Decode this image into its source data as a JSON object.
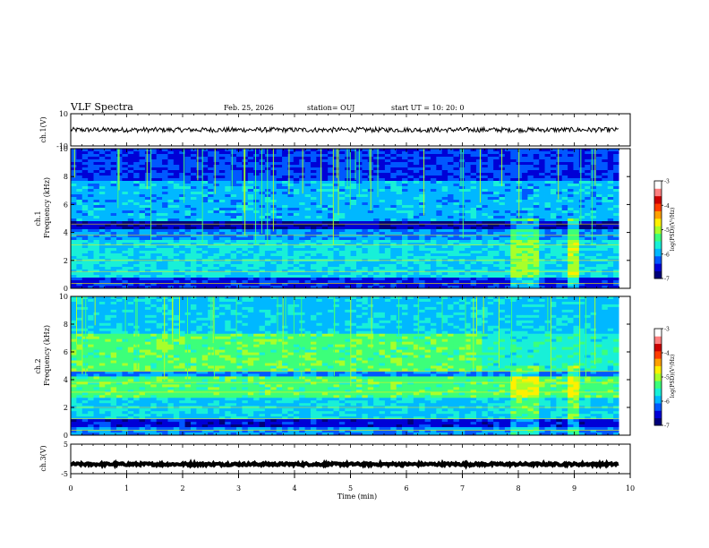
{
  "header": {
    "title": "VLF Spectra",
    "date": "Feb. 25, 2026",
    "station": "station= OUJ",
    "start": "start  UT =   10: 20: 0"
  },
  "colors": {
    "colormap": [
      "#00007a",
      "#0000d6",
      "#0058ff",
      "#00b8ff",
      "#18f0d8",
      "#3cff7a",
      "#a8ff2a",
      "#fff000",
      "#ffa000",
      "#ff3c00",
      "#cc0000",
      "#ff8080",
      "#ffffff"
    ],
    "trace": "#000000"
  },
  "chart_data": [
    {
      "type": "line",
      "panel": "ch1-waveform",
      "ylabel": "ch.1(V)",
      "ylim": [
        -10,
        10
      ],
      "yticks": [
        {
          "v": 10,
          "label": "10"
        },
        {
          "v": -10,
          "label": "-10"
        }
      ],
      "xlim": [
        0,
        10
      ],
      "center": 0,
      "amplitude_v": 1.5
    },
    {
      "type": "heatmap",
      "panel": "ch1-spectrogram",
      "ylabel_top": "ch.1",
      "ylabel": "Frequency  (kHz)",
      "ylim": [
        0,
        10
      ],
      "yticks": [
        {
          "v": 0,
          "label": "0"
        },
        {
          "v": 2,
          "label": "2"
        },
        {
          "v": 4,
          "label": "4"
        },
        {
          "v": 6,
          "label": "6"
        },
        {
          "v": 8,
          "label": "8"
        },
        {
          "v": 10,
          "label": "10"
        }
      ],
      "xlim": [
        0,
        10
      ],
      "colorbar": {
        "label": "log(PSD)(V²/Hz)",
        "range": [
          -7,
          -3
        ],
        "ticks": [
          {
            "v": -3,
            "label": "-3"
          },
          {
            "v": -4,
            "label": "-4"
          },
          {
            "v": -5,
            "label": "-5"
          },
          {
            "v": -6,
            "label": "-6"
          },
          {
            "v": -7,
            "label": "-7"
          }
        ]
      }
    },
    {
      "type": "heatmap",
      "panel": "ch2-spectrogram",
      "ylabel_top": "ch.2",
      "ylabel": "Frequency  (kHz)",
      "ylim": [
        0,
        10
      ],
      "yticks": [
        {
          "v": 0,
          "label": "0"
        },
        {
          "v": 2,
          "label": "2"
        },
        {
          "v": 4,
          "label": "4"
        },
        {
          "v": 6,
          "label": "6"
        },
        {
          "v": 8,
          "label": "8"
        },
        {
          "v": 10,
          "label": "10"
        }
      ],
      "xlim": [
        0,
        10
      ],
      "colorbar": {
        "label": "log(PSD)(V²/Hz)",
        "range": [
          -7,
          -3
        ],
        "ticks": [
          {
            "v": -3,
            "label": "-3"
          },
          {
            "v": -4,
            "label": "-4"
          },
          {
            "v": -5,
            "label": "-5"
          },
          {
            "v": -6,
            "label": "-6"
          },
          {
            "v": -7,
            "label": "-7"
          }
        ]
      }
    },
    {
      "type": "line",
      "panel": "ch3-waveform",
      "ylabel": "ch.3(V)",
      "ylim": [
        -5,
        5
      ],
      "yticks": [
        {
          "v": 5,
          "label": "5"
        },
        {
          "v": -5,
          "label": "-5"
        }
      ],
      "xlim": [
        0,
        10
      ],
      "xlabel": "Time  (min)",
      "xticks": [
        {
          "v": 0,
          "label": "0"
        },
        {
          "v": 1,
          "label": "1"
        },
        {
          "v": 2,
          "label": "2"
        },
        {
          "v": 3,
          "label": "3"
        },
        {
          "v": 4,
          "label": "4"
        },
        {
          "v": 5,
          "label": "5"
        },
        {
          "v": 6,
          "label": "6"
        },
        {
          "v": 7,
          "label": "7"
        },
        {
          "v": 8,
          "label": "8"
        },
        {
          "v": 9,
          "label": "9"
        },
        {
          "v": 10,
          "label": "10"
        }
      ],
      "center": -1.8,
      "amplitude_v": 0.4
    }
  ]
}
